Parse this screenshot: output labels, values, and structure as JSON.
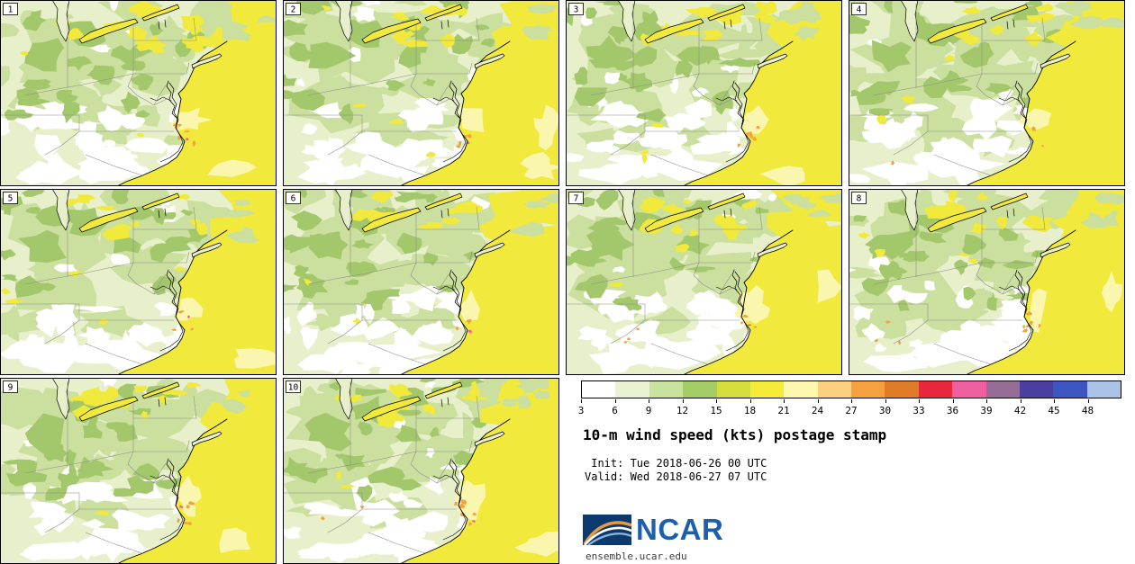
{
  "product": {
    "title": "10-m wind speed (kts) postage stamp",
    "init_line": " Init: Tue 2018-06-26 00 UTC",
    "valid_line": "Valid: Wed 2018-06-27 07 UTC"
  },
  "branding": {
    "logo_text": "NCAR",
    "site_url": "ensemble.ucar.edu"
  },
  "panels": [
    {
      "label": "1"
    },
    {
      "label": "2"
    },
    {
      "label": "3"
    },
    {
      "label": "4"
    },
    {
      "label": "5"
    },
    {
      "label": "6"
    },
    {
      "label": "7"
    },
    {
      "label": "8"
    },
    {
      "label": "9"
    },
    {
      "label": "10"
    }
  ],
  "colorbar": {
    "tick_labels": [
      "3",
      "6",
      "9",
      "12",
      "15",
      "18",
      "21",
      "24",
      "27",
      "30",
      "33",
      "36",
      "39",
      "42",
      "45",
      "48"
    ],
    "segment_colors": [
      "#ffffff",
      "#e9f3d2",
      "#c9e2a0",
      "#a3cb66",
      "#d3de3d",
      "#f5ec3a",
      "#fcf8b0",
      "#fbd07f",
      "#f5a13f",
      "#e07b28",
      "#e8263c",
      "#ee5fa0",
      "#966d96",
      "#4a3f9f",
      "#3d55c0",
      "#a9c4e8"
    ]
  },
  "map_palette": {
    "base": "#e7f0cb",
    "white": "#ffffff",
    "light_green": "#cbdf9e",
    "green": "#a3c76b",
    "yellow": "#f1e93c",
    "pale_yellow": "#fbf6ae",
    "orange": "#f2a13f",
    "pink": "#ec5f9e",
    "coast": "#000000",
    "state_border": "#8c8c8c",
    "frame": "#000000"
  }
}
